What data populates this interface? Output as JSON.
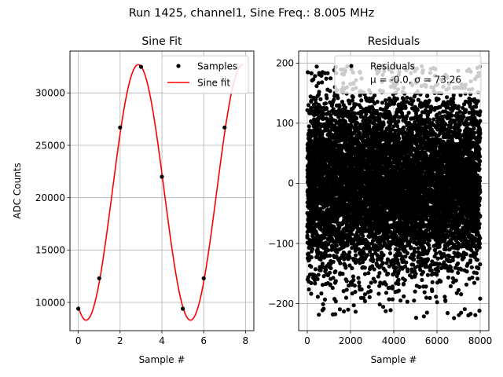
{
  "suptitle": "Run 1425, channel1, Sine Freq.: 8.005 MHz",
  "chart_data": [
    {
      "type": "line",
      "title": "Sine Fit",
      "xlabel": "Sample #",
      "ylabel": "ADC Counts",
      "xlim": [
        -0.4,
        8.4
      ],
      "ylim": [
        7300,
        34000
      ],
      "xticks": [
        "0",
        "2",
        "4",
        "6",
        "8"
      ],
      "yticks": [
        "10000",
        "15000",
        "20000",
        "25000",
        "30000"
      ],
      "grid": true,
      "legend_position": "upper-right",
      "series": [
        {
          "name": "Samples",
          "style": "black dots",
          "color": "#000000",
          "x": [
            0,
            1,
            2,
            3,
            4,
            5,
            6,
            7
          ],
          "y": [
            9400,
            12300,
            26700,
            32500,
            22000,
            9400,
            12300,
            26700
          ]
        },
        {
          "name": "Sine fit",
          "style": "line",
          "color": "#ff0000",
          "x_range": [
            0,
            7.9
          ],
          "model": {
            "offset": 20500,
            "amplitude": 12200,
            "period_samples": 4.996,
            "phase_sample": 2.87
          }
        }
      ]
    },
    {
      "type": "scatter",
      "title": "Residuals",
      "xlabel": "Sample #",
      "xlim": [
        -400,
        8400
      ],
      "ylim": [
        -245,
        220
      ],
      "xticks": [
        "0",
        "2000",
        "4000",
        "6000",
        "8000"
      ],
      "yticks": [
        "−200",
        "−100",
        "0",
        "100",
        "200"
      ],
      "grid": true,
      "legend_position": "upper-right",
      "series": [
        {
          "name": "Residuals",
          "color": "#000000",
          "n_points": 8000,
          "mean": 0.0,
          "std": 73.26,
          "min": -225,
          "max": 195
        }
      ],
      "stats_label": "μ = -0.0, σ = 73.26"
    }
  ]
}
